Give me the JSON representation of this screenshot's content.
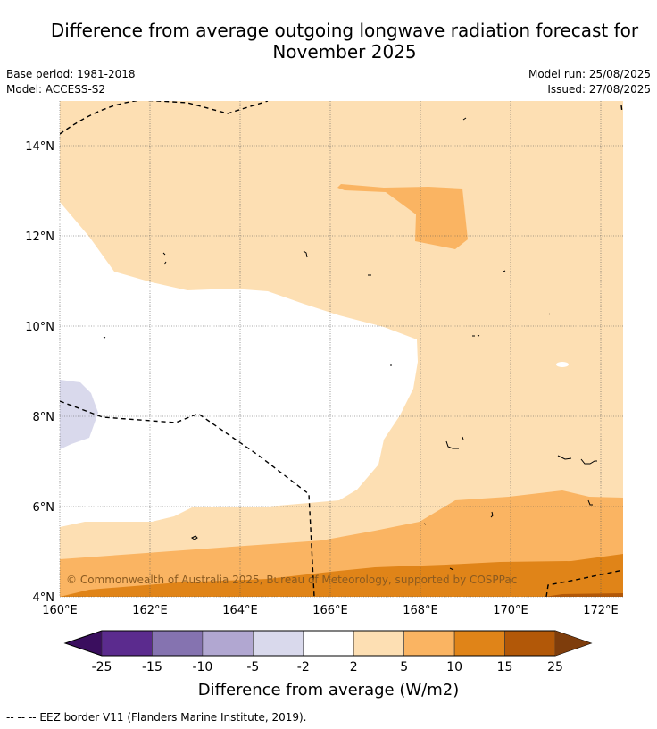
{
  "title_line1": "Difference from average outgoing longwave radiation forecast for",
  "title_line2": "November 2025",
  "base_period": "Base period: 1981-2018",
  "model": "Model: ACCESS-S2",
  "model_run": "Model run: 25/08/2025",
  "issued": "Issued: 27/08/2025",
  "copyright": "© Commonwealth of Australia 2025, Bureau of Meteorology, supported by COSPPac",
  "footnote": "--  --  -- EEZ border V11 (Flanders Marine Institute, 2019).",
  "map": {
    "lon_ticks": [
      "160°E",
      "162°E",
      "164°E",
      "166°E",
      "168°E",
      "170°E",
      "172°E"
    ],
    "lat_ticks": [
      "14°N",
      "12°N",
      "10°N",
      "8°N",
      "6°N",
      "4°N"
    ],
    "lon_values": [
      160,
      162,
      164,
      166,
      168,
      170,
      172
    ],
    "lat_values": [
      14,
      12,
      10,
      8,
      6,
      4
    ],
    "grid": true,
    "colors": {
      "neg_2_5": "#d9d9ec",
      "neutral": "#ffffff",
      "pos_2_5": "#fddfb3",
      "pos_5_10": "#fab462",
      "pos_10_15": "#e08418",
      "pos_15_25": "#b25808"
    }
  },
  "colorbar": {
    "title": "Difference from average (W/m2)",
    "tick_labels": [
      "-25",
      "-15",
      "-10",
      "-5",
      "-2",
      "2",
      "5",
      "10",
      "15",
      "25"
    ],
    "colors": [
      "#5b2b8e",
      "#8573b0",
      "#b1a7d1",
      "#d9d9ec",
      "#ffffff",
      "#fddfb3",
      "#fab462",
      "#e08418",
      "#b25808"
    ],
    "extend_low_color": "#3a0e5e",
    "extend_high_color": "#7e3d0c"
  }
}
